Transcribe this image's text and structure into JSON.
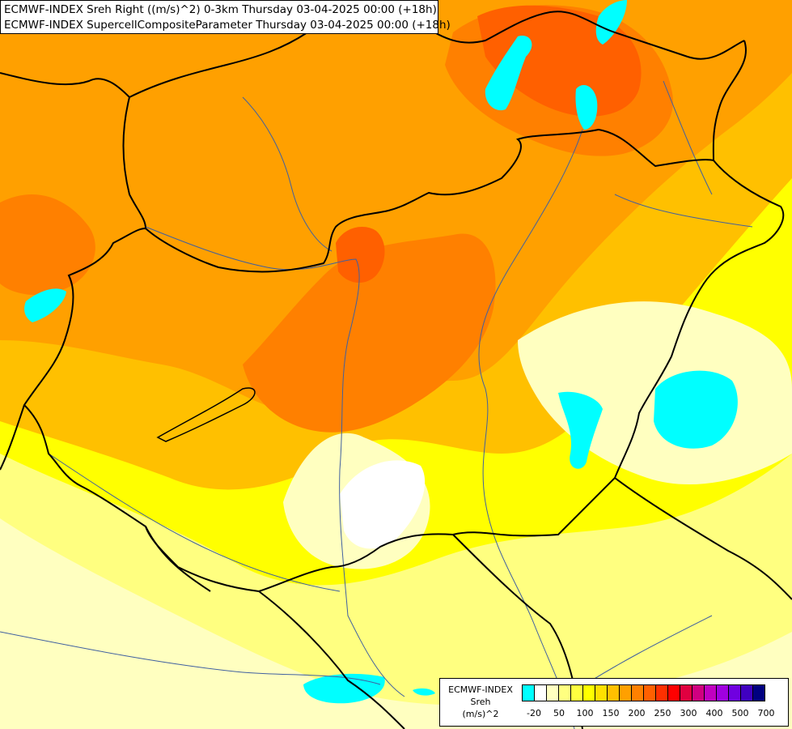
{
  "title": {
    "line1": "ECMWF-INDEX Sreh Right ((m/s)^2) 0-3km Thursday 03-04-2025 00:00 (+18h)",
    "line2": "ECMWF-INDEX SupercellCompositeParameter Thursday 03-04-2025 00:00 (+18h)"
  },
  "legend": {
    "line1": "ECMWF-INDEX",
    "line2": "Sreh",
    "line3": "(m/s)^2",
    "colors": [
      "#00ffff",
      "#ffffff",
      "#ffffc0",
      "#ffff80",
      "#ffff40",
      "#ffff00",
      "#ffe000",
      "#ffc000",
      "#ffa000",
      "#ff8000",
      "#ff6000",
      "#ff3000",
      "#ff0000",
      "#e00040",
      "#d00080",
      "#c000c0",
      "#a000e0",
      "#7000e0",
      "#4000c0",
      "#000080"
    ],
    "ticks": [
      "-20",
      "50",
      "100",
      "150",
      "200",
      "250",
      "300",
      "400",
      "500",
      "700"
    ]
  },
  "palette": {
    "yellow_light": "#ffff80",
    "yellow": "#ffff00",
    "amber": "#ffc000",
    "orange": "#ffa000",
    "dark_orange": "#ff8000",
    "red_orange": "#ff6000",
    "cyan": "#00ffff",
    "pale": "#ffffc0",
    "white": "#ffffff"
  }
}
